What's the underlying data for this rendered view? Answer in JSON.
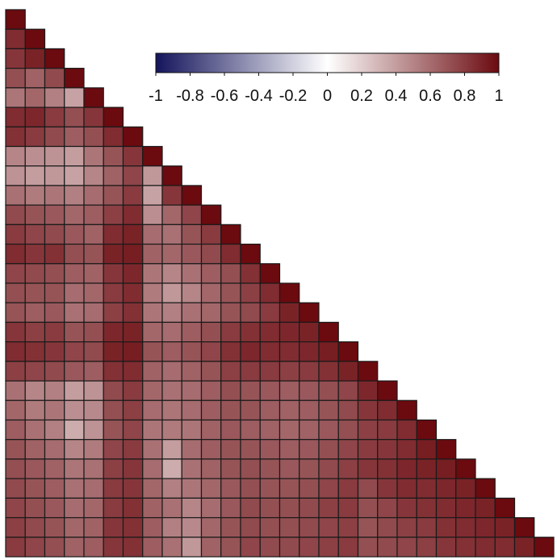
{
  "chart_data": {
    "type": "heatmap",
    "layout": "lower-triangle",
    "size": 28,
    "value_range": [
      -1,
      1
    ],
    "diagonal_value": 1,
    "colorscale": {
      "low": "#14145c",
      "mid": "#ffffff",
      "high": "#6b0a0f"
    },
    "colorbar": {
      "ticks": [
        -1,
        -0.8,
        -0.6,
        -0.4,
        -0.2,
        0,
        0.2,
        0.4,
        0.6,
        0.8,
        1
      ],
      "tick_labels": [
        "-1",
        "-0.8",
        "-0.6",
        "-0.4",
        "-0.2",
        "0",
        "0.2",
        "0.4",
        "0.6",
        "0.8",
        "1"
      ],
      "placement": "top-right"
    },
    "rows": [
      [
        1
      ],
      [
        0.86,
        1
      ],
      [
        0.82,
        0.9,
        1
      ],
      [
        0.72,
        0.64,
        0.74,
        1
      ],
      [
        0.56,
        0.62,
        0.52,
        0.38,
        1
      ],
      [
        0.86,
        0.88,
        0.8,
        0.72,
        0.82,
        1
      ],
      [
        0.84,
        0.8,
        0.74,
        0.66,
        0.72,
        0.86,
        1
      ],
      [
        0.5,
        0.46,
        0.44,
        0.4,
        0.56,
        0.7,
        0.82,
        1
      ],
      [
        0.44,
        0.4,
        0.42,
        0.38,
        0.5,
        0.64,
        0.76,
        0.42,
        1
      ],
      [
        0.58,
        0.54,
        0.56,
        0.52,
        0.6,
        0.7,
        0.8,
        0.38,
        0.82,
        1
      ],
      [
        0.74,
        0.7,
        0.68,
        0.62,
        0.66,
        0.78,
        0.86,
        0.46,
        0.62,
        0.76,
        1
      ],
      [
        0.8,
        0.76,
        0.74,
        0.68,
        0.64,
        0.86,
        0.9,
        0.6,
        0.58,
        0.7,
        0.8,
        1
      ],
      [
        0.86,
        0.82,
        0.84,
        0.72,
        0.7,
        0.9,
        0.92,
        0.64,
        0.62,
        0.68,
        0.74,
        0.86,
        1
      ],
      [
        0.76,
        0.74,
        0.72,
        0.66,
        0.64,
        0.82,
        0.88,
        0.56,
        0.5,
        0.58,
        0.66,
        0.72,
        0.84,
        1
      ],
      [
        0.72,
        0.7,
        0.7,
        0.6,
        0.62,
        0.8,
        0.86,
        0.54,
        0.42,
        0.5,
        0.62,
        0.7,
        0.78,
        0.86,
        1
      ],
      [
        0.7,
        0.66,
        0.68,
        0.58,
        0.6,
        0.78,
        0.84,
        0.56,
        0.52,
        0.58,
        0.62,
        0.7,
        0.74,
        0.8,
        0.9,
        1
      ],
      [
        0.82,
        0.78,
        0.8,
        0.7,
        0.72,
        0.88,
        0.9,
        0.62,
        0.6,
        0.66,
        0.72,
        0.8,
        0.84,
        0.86,
        0.88,
        0.9,
        1
      ],
      [
        0.86,
        0.84,
        0.82,
        0.76,
        0.74,
        0.9,
        0.92,
        0.7,
        0.66,
        0.7,
        0.76,
        0.84,
        0.88,
        0.86,
        0.86,
        0.88,
        0.92,
        1
      ],
      [
        0.78,
        0.76,
        0.74,
        0.68,
        0.66,
        0.84,
        0.86,
        0.64,
        0.6,
        0.64,
        0.7,
        0.78,
        0.8,
        0.8,
        0.78,
        0.8,
        0.84,
        0.9,
        1
      ],
      [
        0.58,
        0.5,
        0.52,
        0.4,
        0.44,
        0.74,
        0.8,
        0.62,
        0.58,
        0.6,
        0.66,
        0.72,
        0.7,
        0.68,
        0.66,
        0.68,
        0.72,
        0.76,
        0.88,
        1
      ],
      [
        0.62,
        0.54,
        0.56,
        0.46,
        0.48,
        0.72,
        0.78,
        0.6,
        0.56,
        0.6,
        0.66,
        0.7,
        0.7,
        0.66,
        0.64,
        0.66,
        0.7,
        0.74,
        0.82,
        0.86,
        1
      ],
      [
        0.66,
        0.58,
        0.52,
        0.34,
        0.44,
        0.7,
        0.76,
        0.56,
        0.54,
        0.56,
        0.64,
        0.68,
        0.66,
        0.64,
        0.62,
        0.64,
        0.68,
        0.72,
        0.78,
        0.8,
        0.86,
        1
      ],
      [
        0.7,
        0.64,
        0.6,
        0.5,
        0.54,
        0.76,
        0.8,
        0.58,
        0.4,
        0.6,
        0.66,
        0.7,
        0.7,
        0.68,
        0.66,
        0.68,
        0.72,
        0.76,
        0.8,
        0.82,
        0.86,
        0.92,
        1
      ],
      [
        0.72,
        0.68,
        0.64,
        0.56,
        0.58,
        0.78,
        0.82,
        0.6,
        0.34,
        0.58,
        0.64,
        0.7,
        0.72,
        0.7,
        0.68,
        0.7,
        0.74,
        0.78,
        0.82,
        0.84,
        0.88,
        0.9,
        0.92,
        1
      ],
      [
        0.74,
        0.7,
        0.66,
        0.58,
        0.6,
        0.8,
        0.82,
        0.62,
        0.52,
        0.56,
        0.62,
        0.68,
        0.72,
        0.7,
        0.7,
        0.72,
        0.76,
        0.8,
        0.74,
        0.82,
        0.86,
        0.86,
        0.88,
        0.9,
        1
      ],
      [
        0.76,
        0.72,
        0.68,
        0.6,
        0.62,
        0.8,
        0.84,
        0.64,
        0.58,
        0.5,
        0.6,
        0.68,
        0.74,
        0.72,
        0.72,
        0.74,
        0.78,
        0.8,
        0.72,
        0.76,
        0.82,
        0.84,
        0.86,
        0.88,
        0.9,
        1
      ],
      [
        0.78,
        0.74,
        0.7,
        0.62,
        0.64,
        0.82,
        0.84,
        0.66,
        0.52,
        0.48,
        0.62,
        0.7,
        0.74,
        0.72,
        0.72,
        0.74,
        0.76,
        0.78,
        0.7,
        0.74,
        0.78,
        0.8,
        0.84,
        0.86,
        0.88,
        0.9,
        1
      ],
      [
        0.8,
        0.76,
        0.72,
        0.64,
        0.66,
        0.82,
        0.84,
        0.66,
        0.58,
        0.42,
        0.64,
        0.7,
        0.76,
        0.74,
        0.74,
        0.76,
        0.78,
        0.8,
        0.72,
        0.74,
        0.76,
        0.78,
        0.82,
        0.84,
        0.86,
        0.86,
        0.9,
        1
      ]
    ]
  }
}
